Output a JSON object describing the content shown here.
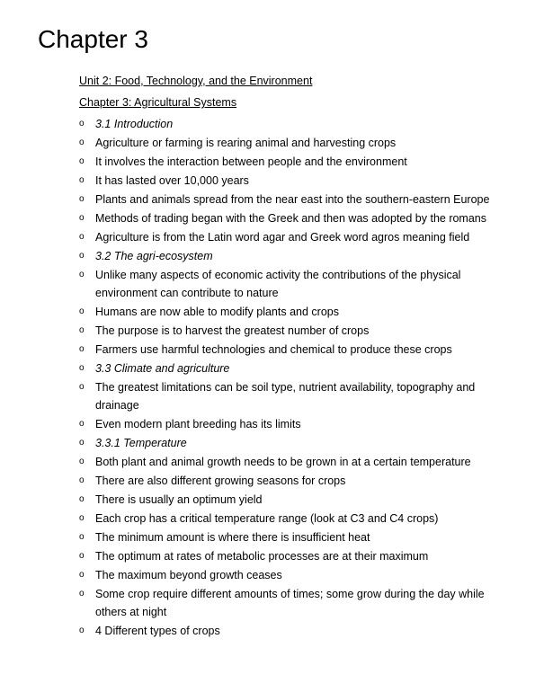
{
  "title": "Chapter 3",
  "headings": {
    "unit": "Unit 2: Food, Technology, and the Environment",
    "chapter": "Chapter 3: Agricultural Systems"
  },
  "items": [
    {
      "text": "3.1 Introduction",
      "style": "italic"
    },
    {
      "text": "Agriculture or farming is rearing animal and harvesting crops"
    },
    {
      "text": "It involves the interaction between people and the environment"
    },
    {
      "text": "It has lasted over 10,000 years"
    },
    {
      "text": "Plants and animals spread from the near east into the southern-eastern Europe"
    },
    {
      "text": "Methods of trading began with the Greek and then was adopted by the romans"
    },
    {
      "text": "Agriculture is from the Latin word agar and Greek word agros meaning field"
    },
    {
      "text": "3.2 The agri-ecosystem",
      "style": "italic"
    },
    {
      "text": "Unlike many aspects of economic activity the contributions of the physical environment can contribute to nature"
    },
    {
      "text": "Humans are now able to modify plants and crops"
    },
    {
      "text": "The purpose is to harvest the greatest number of crops"
    },
    {
      "text": "Farmers use harmful technologies and chemical to produce these crops"
    },
    {
      "text": "3.3 Climate and agriculture",
      "style": "italic"
    },
    {
      "text": "  The greatest limitations can be soil type, nutrient availability, topography and drainage",
      "indent": true
    },
    {
      "text": "   Even modern plant breeding has its limits",
      "indent": true
    },
    {
      "text": "3.3.1 Temperature",
      "style": "italic"
    },
    {
      "text": "Both plant and animal growth needs to be grown in at a certain temperature"
    },
    {
      "text": "There are also different growing seasons for crops"
    },
    {
      "text": "There is usually an optimum yield"
    },
    {
      "text": "Each crop has a critical temperature range (look at C3 and C4 crops)"
    },
    {
      "text": "The minimum amount is where there is insufficient heat"
    },
    {
      "text": "The optimum at rates of metabolic processes are at their maximum"
    },
    {
      "text": "The maximum beyond growth ceases"
    },
    {
      "text": "Some crop require different amounts of times; some grow during the day while others at night"
    },
    {
      "text": "4 Different types of crops"
    }
  ],
  "typography": {
    "title_fontsize": 28,
    "body_fontsize": 12.5,
    "font_family": "Arial",
    "text_color": "#000000",
    "background_color": "#ffffff"
  }
}
